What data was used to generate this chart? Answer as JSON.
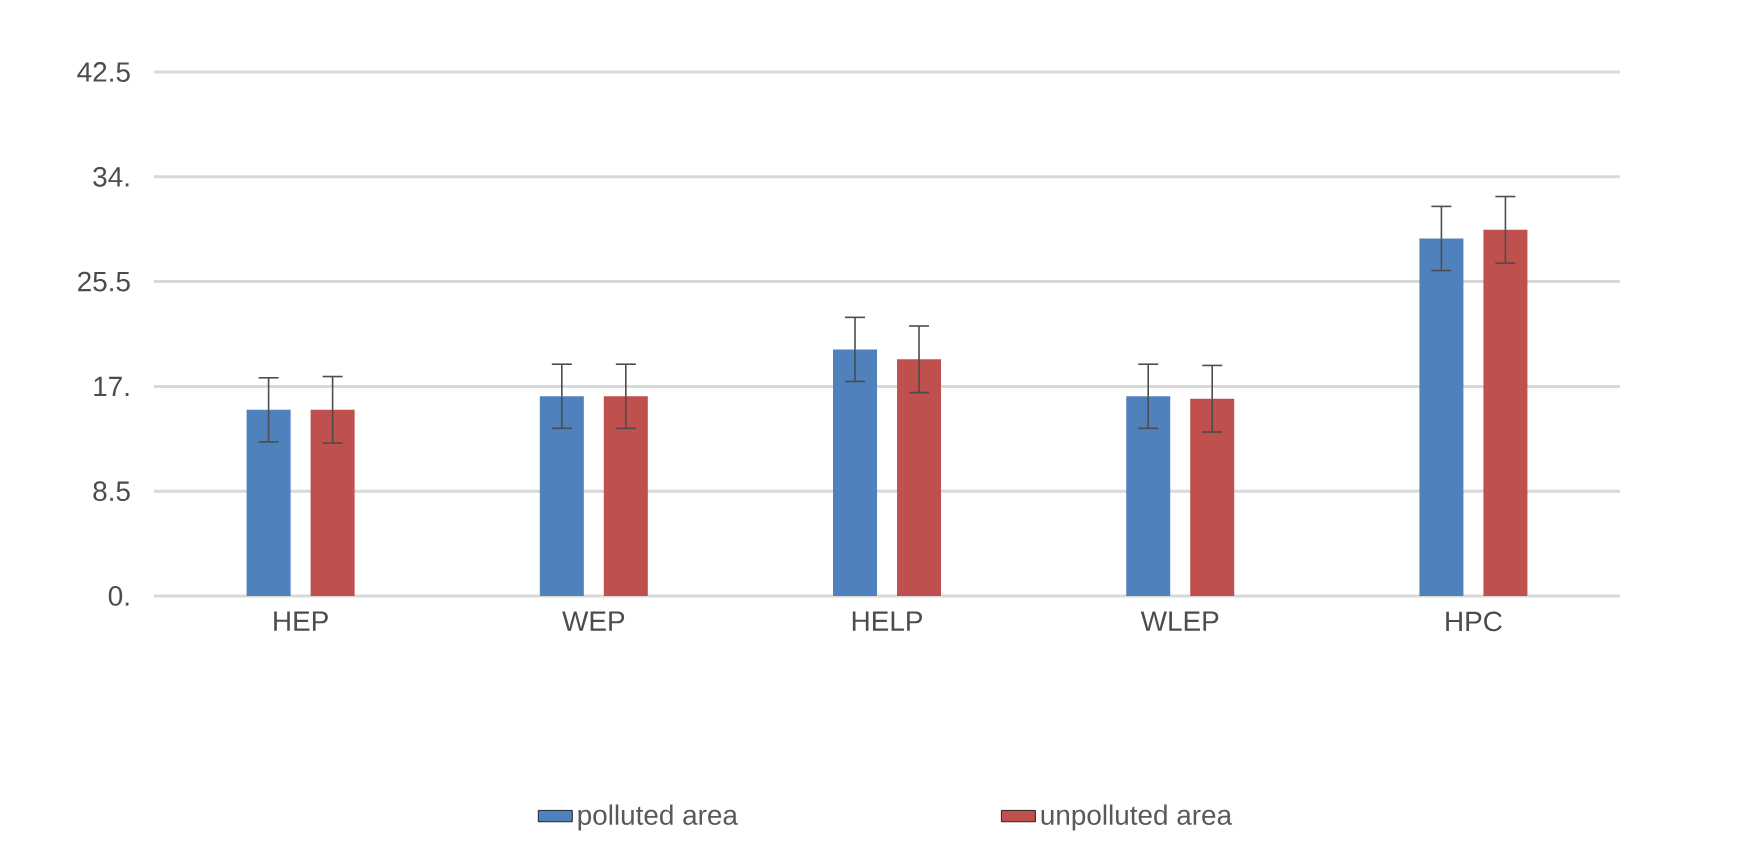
{
  "chart_data": {
    "type": "bar",
    "categories": [
      "HEP",
      "WEP",
      "HELP",
      "WLEP",
      "HPC"
    ],
    "series": [
      {
        "name": "polluted area",
        "color": "#4f81bd",
        "values": [
          15.1,
          16.2,
          20.0,
          16.2,
          29.0
        ],
        "errors": [
          2.6,
          2.6,
          2.6,
          2.6,
          2.6
        ]
      },
      {
        "name": "unpolluted area",
        "color": "#c0504d",
        "values": [
          15.1,
          16.2,
          19.2,
          16.0,
          29.7
        ],
        "errors": [
          2.7,
          2.6,
          2.7,
          2.7,
          2.7
        ]
      }
    ],
    "ylim": [
      0,
      42.5
    ],
    "yticks": [
      {
        "value": 0,
        "label": "0."
      },
      8.5,
      {
        "value": 17,
        "label": "17."
      },
      25.5,
      {
        "value": 34,
        "label": "34."
      },
      42.5
    ],
    "grid": "y",
    "legend": "bottom"
  }
}
